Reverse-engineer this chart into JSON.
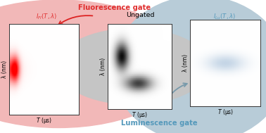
{
  "bg_pink_color": "#f2b8b8",
  "bg_blue_color": "#b8ccd8",
  "bg_gray_color": "#c5c5c5",
  "fl_gate_label": "Fluorescence gate",
  "lu_gate_label": "Luminescence gate",
  "ungated_label": "Ungated",
  "left_formula": "$I_{\\mathrm{Fl}}(T, \\lambda)$",
  "right_formula": "$I_{\\mathrm{Lu}}(T, \\lambda)$",
  "xlabel": "$T$ (μs)",
  "ylabel": "λ (nm)",
  "fl_gate_color": "#e03030",
  "lu_gate_color": "#5599bb",
  "arrow_fl_color": "#dd2222",
  "arrow_lu_color": "#7799aa"
}
